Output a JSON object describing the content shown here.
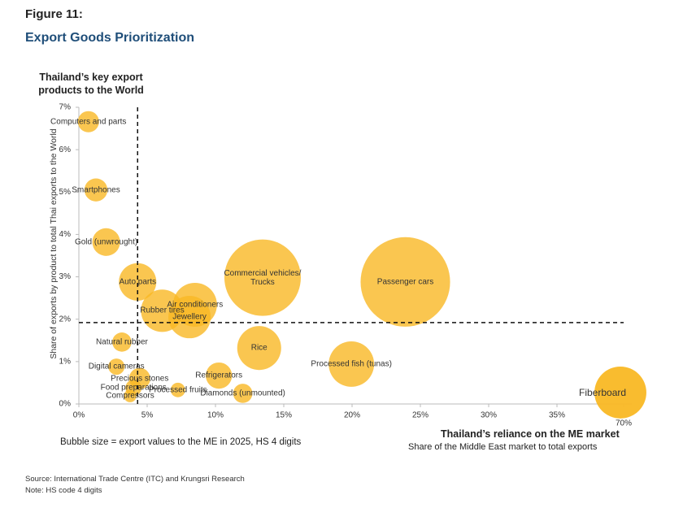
{
  "figure_label": "Figure 11:",
  "chart_data": {
    "type": "bubble",
    "title": "Export Goods Prioritization",
    "y_header": "Thailand’s key export products to the World",
    "y_label": "Share of exports by product to total Thai exports to the World",
    "x_label": "Thailand’s reliance on the ME market",
    "x_sublabel": "Share of the Middle East market to total exports",
    "size_note": "Bubble size = export values to the ME in 2025, HS 4 digits",
    "color": "#f9b824",
    "labels": [
      "Computers and parts",
      "Smartphones",
      "Gold (unwrought)",
      "Auto parts",
      "Rubber tires",
      "Air conditioners",
      "Jewellery",
      "Commercial vehicles/ Trucks",
      "Passenger cars",
      "Natural rubber",
      "Digital cameras",
      "Precious stones",
      "Food preparations",
      "Compressors",
      "Processed fruits",
      "Refrigerators",
      "Diamonds (unmounted)",
      "Rice",
      "Processed fish (tunas)",
      "Fiberboard"
    ],
    "x": [
      0.7,
      1.25,
      2.0,
      4.3,
      6.1,
      8.5,
      8.1,
      13.45,
      23.9,
      3.15,
      2.75,
      4.45,
      4.0,
      3.75,
      7.25,
      10.25,
      12.0,
      13.2,
      19.95,
      68.3
    ],
    "y": [
      6.66,
      5.05,
      3.82,
      2.88,
      2.2,
      2.34,
      2.05,
      2.98,
      2.88,
      1.46,
      0.88,
      0.6,
      0.38,
      0.19,
      0.33,
      0.67,
      0.25,
      1.32,
      0.94,
      0.27
    ],
    "sizes": [
      17,
      20,
      29,
      53,
      68,
      73,
      68,
      221,
      303,
      14,
      10,
      17,
      10,
      6,
      8,
      26,
      14,
      73,
      78,
      102
    ],
    "xlim": [
      0,
      70
    ],
    "ylim": [
      0,
      7
    ],
    "xticks": [
      {
        "value": 0,
        "label": "0%"
      },
      {
        "value": 5,
        "label": "5%"
      },
      {
        "value": 10,
        "label": "10%"
      },
      {
        "value": 15,
        "label": "15%"
      },
      {
        "value": 20,
        "label": "20%"
      },
      {
        "value": 25,
        "label": "25%"
      },
      {
        "value": 30,
        "label": "30%"
      },
      {
        "value": 35,
        "label": "35%"
      },
      {
        "value": 70,
        "label": "70%"
      }
    ],
    "yticks": [
      {
        "value": 0,
        "label": "0%"
      },
      {
        "value": 1,
        "label": "1%"
      },
      {
        "value": 2,
        "label": "2%"
      },
      {
        "value": 3,
        "label": "3%"
      },
      {
        "value": 4,
        "label": "4%"
      },
      {
        "value": 5,
        "label": "5%"
      },
      {
        "value": 6,
        "label": "6%"
      },
      {
        "value": 7,
        "label": "7%"
      }
    ],
    "vline": 4.3,
    "hline": 1.92
  },
  "source": "Source: International Trade Centre (ITC) and Krungsri Research",
  "note": "Note: HS code 4 digits"
}
